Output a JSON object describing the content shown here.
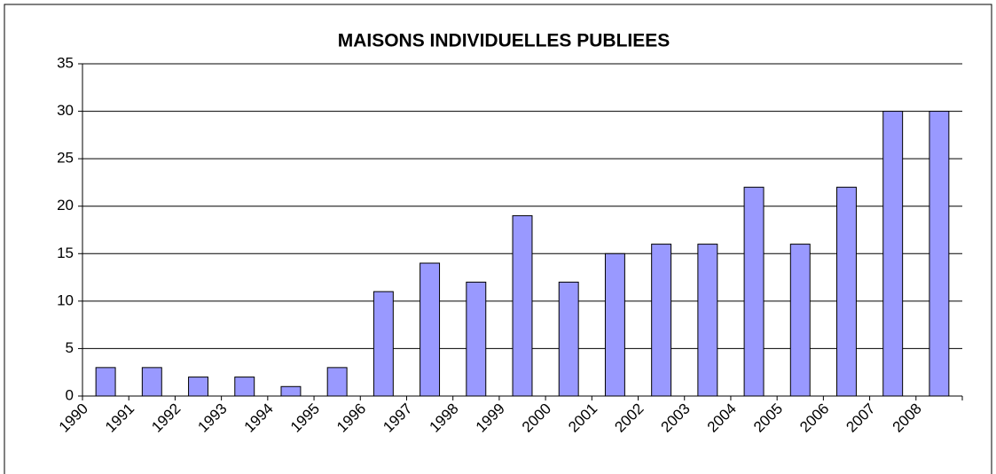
{
  "chart_data": {
    "type": "bar",
    "title": "MAISONS INDIVIDUELLES PUBLIEES",
    "categories": [
      "1990",
      "1991",
      "1992",
      "1993",
      "1994",
      "1995",
      "1996",
      "1997",
      "1998",
      "1999",
      "2000",
      "2001",
      "2002",
      "2003",
      "2004",
      "2005",
      "2006",
      "2007",
      "2008"
    ],
    "values": [
      3,
      3,
      2,
      2,
      1,
      3,
      11,
      14,
      12,
      19,
      12,
      15,
      16,
      16,
      22,
      16,
      22,
      30,
      30
    ],
    "color": "#9999ff",
    "ylim": [
      0,
      35
    ],
    "yticks": [
      0,
      5,
      10,
      15,
      20,
      25,
      30,
      35
    ],
    "grid": true
  }
}
